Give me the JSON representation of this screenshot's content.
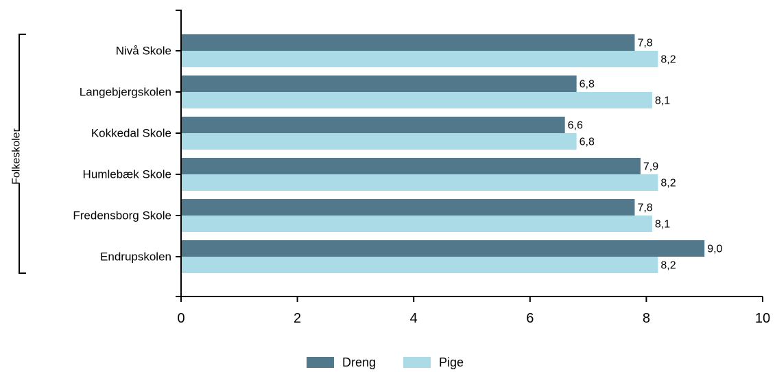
{
  "chart_data": {
    "type": "bar",
    "orientation": "horizontal",
    "group_label": "Folkeskoler",
    "categories": [
      "Nivå Skole",
      "Langebjergskolen",
      "Kokkedal Skole",
      "Humlebæk Skole",
      "Fredensborg Skole",
      "Endrupskolen"
    ],
    "series": [
      {
        "name": "Dreng",
        "color": "#52788b",
        "values": [
          7.8,
          6.8,
          6.6,
          7.9,
          7.8,
          9.0
        ],
        "labels": [
          "7,8",
          "6,8",
          "6,6",
          "7,9",
          "7,8",
          "9,0"
        ]
      },
      {
        "name": "Pige",
        "color": "#acdbe8",
        "values": [
          8.2,
          8.1,
          6.8,
          8.2,
          8.1,
          8.2
        ],
        "labels": [
          "8,2",
          "8,1",
          "6,8",
          "8,2",
          "8,1",
          "8,2"
        ]
      }
    ],
    "x_ticks": [
      "0",
      "2",
      "4",
      "6",
      "8",
      "10"
    ],
    "xlim": [
      0,
      10
    ],
    "grid": false,
    "legend_position": "bottom"
  }
}
